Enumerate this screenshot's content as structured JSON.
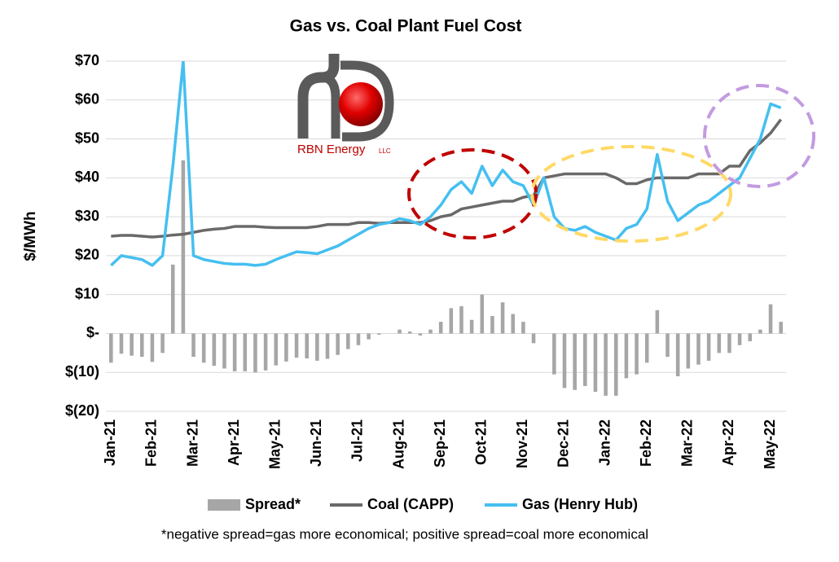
{
  "chart_data": {
    "type": "line",
    "title": "Gas vs. Coal Plant Fuel Cost",
    "y_axis_label": "$/MWh",
    "logo_text": "RBN Energy",
    "logo_suffix": "LLC",
    "footnote": "*negative spread=gas more economical; positive spread=coal more economical",
    "categories": [
      "Jan-21",
      null,
      null,
      null,
      "Feb-21",
      null,
      null,
      null,
      "Mar-21",
      null,
      null,
      null,
      "Apr-21",
      null,
      null,
      null,
      "May-21",
      null,
      null,
      null,
      "Jun-21",
      null,
      null,
      null,
      "Jul-21",
      null,
      null,
      null,
      "Aug-21",
      null,
      null,
      null,
      "Sep-21",
      null,
      null,
      null,
      "Oct-21",
      null,
      null,
      null,
      "Nov-21",
      null,
      null,
      null,
      "Dec-21",
      null,
      null,
      null,
      "Jan-22",
      null,
      null,
      null,
      "Feb-22",
      null,
      null,
      null,
      "Mar-22",
      null,
      null,
      null,
      "Apr-22",
      null,
      null,
      null,
      "May-22",
      null
    ],
    "ylim": [
      -20,
      70
    ],
    "yticks": [
      {
        "value": -20,
        "label": "$(20)"
      },
      {
        "value": -10,
        "label": "$(10)"
      },
      {
        "value": 0,
        "label": "$-"
      },
      {
        "value": 10,
        "label": "$10"
      },
      {
        "value": 20,
        "label": "$20"
      },
      {
        "value": 30,
        "label": "$30"
      },
      {
        "value": 40,
        "label": "$40"
      },
      {
        "value": 50,
        "label": "$50"
      },
      {
        "value": 60,
        "label": "$60"
      },
      {
        "value": 70,
        "label": "$70"
      }
    ],
    "grid": true,
    "legend": "bottom",
    "series": [
      {
        "name": "Spread*",
        "type": "bar",
        "color": "#a6a6a6",
        "values": [
          -7.5,
          -5.2,
          -5.7,
          -6,
          -7.3,
          -5,
          17.7,
          44.5,
          -6,
          -7.5,
          -8.3,
          -9,
          -9.7,
          -9.7,
          -10,
          -9.5,
          -8.2,
          -7.2,
          -6.2,
          -6.4,
          -7,
          -6.5,
          -5.5,
          -4,
          -3,
          -1.5,
          -0.3,
          0,
          1,
          0.5,
          -0.5,
          1,
          3,
          6.5,
          7,
          3.5,
          10,
          4.5,
          8,
          5,
          3,
          -2.5,
          0,
          -10.5,
          -14,
          -14.5,
          -13.5,
          -15,
          -16,
          -16,
          -11.5,
          -10.5,
          -7.5,
          6,
          -6,
          -11,
          -9,
          -8,
          -7,
          -5,
          -5,
          -3,
          -2,
          1,
          7.5,
          3
        ]
      },
      {
        "name": "Coal (CAPP)",
        "type": "line",
        "color": "#6b6868",
        "values": [
          25,
          25.2,
          25.2,
          25,
          24.8,
          25,
          25.3,
          25.5,
          26,
          26.5,
          26.8,
          27,
          27.5,
          27.5,
          27.5,
          27.3,
          27.2,
          27.2,
          27.2,
          27.2,
          27.5,
          28,
          28,
          28,
          28.5,
          28.5,
          28.3,
          28.5,
          28.5,
          28.5,
          28.5,
          29,
          30,
          30.5,
          32,
          32.5,
          33,
          33.5,
          34,
          34,
          35,
          35.5,
          40,
          40.5,
          41,
          41,
          41,
          41,
          41,
          40,
          38.5,
          38.5,
          39.5,
          40,
          40,
          40,
          40,
          41,
          41,
          41,
          43,
          43,
          47,
          49,
          51.5,
          55
        ]
      },
      {
        "name": "Gas (Henry Hub)",
        "type": "line",
        "color": "#45bff0",
        "values": [
          17.5,
          20,
          19.5,
          19,
          17.5,
          20,
          43,
          70,
          20,
          19,
          18.5,
          18,
          17.8,
          17.8,
          17.5,
          17.8,
          19,
          20,
          21,
          20.8,
          20.5,
          21.5,
          22.5,
          24,
          25.5,
          27,
          28,
          28.5,
          29.5,
          29,
          28,
          30,
          33,
          37,
          39,
          36,
          43,
          38,
          42,
          39,
          38,
          33,
          40,
          30,
          27,
          26.5,
          27.5,
          26,
          25,
          24,
          27,
          28,
          32,
          46,
          34,
          29,
          31,
          33,
          34,
          36,
          38,
          40,
          45,
          50,
          59,
          58
        ]
      }
    ]
  }
}
